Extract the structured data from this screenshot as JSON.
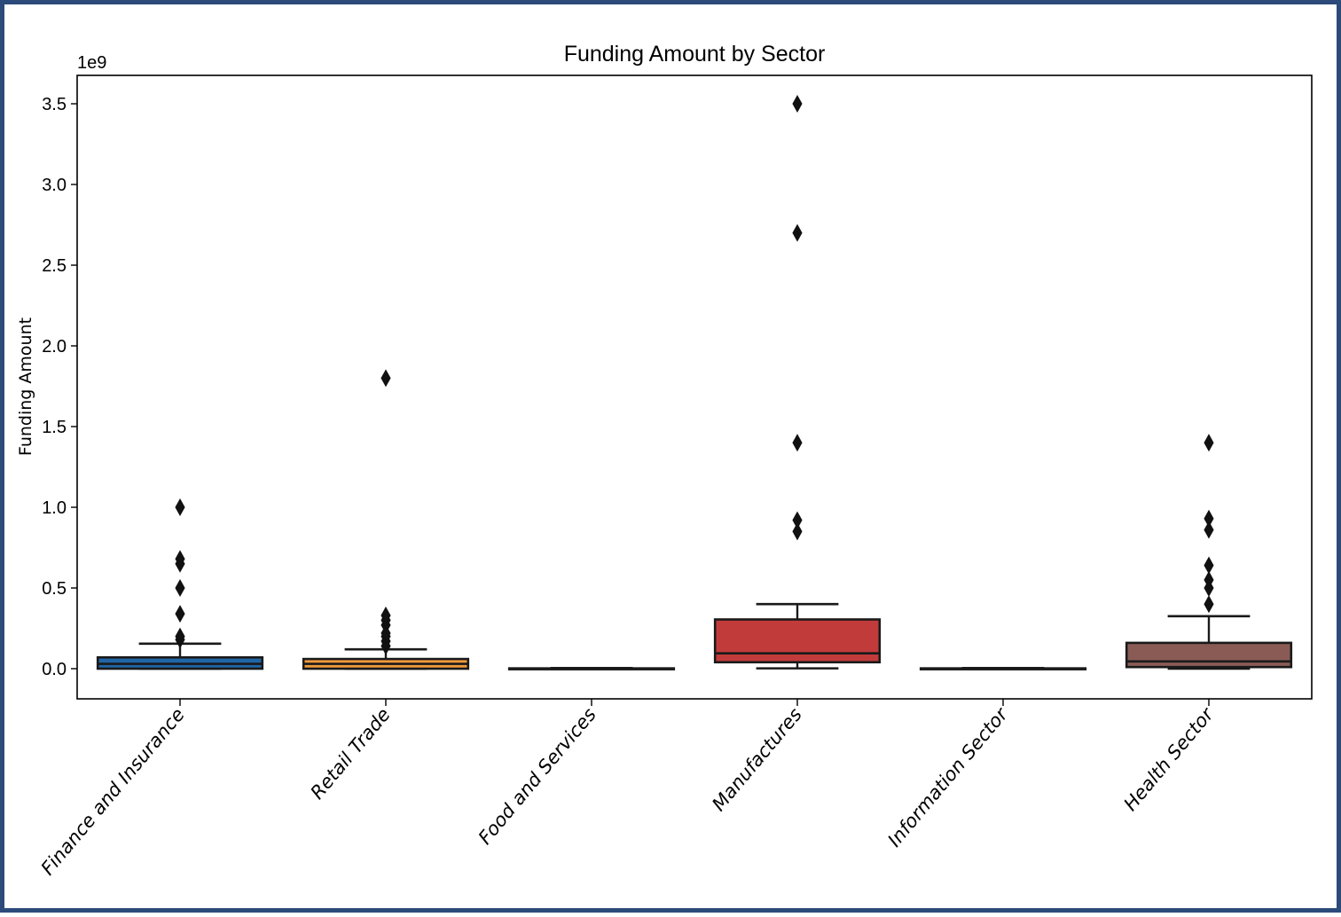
{
  "chart_data": {
    "type": "box",
    "title": "Funding Amount by Sector",
    "ylabel": "Funding Amount",
    "y_offset_label": "1e9",
    "ylim": [
      -0.19,
      3.68
    ],
    "yticks": [
      0.0,
      0.5,
      1.0,
      1.5,
      2.0,
      2.5,
      3.0,
      3.5
    ],
    "ytick_labels": [
      "0.0",
      "0.5",
      "1.0",
      "1.5",
      "2.0",
      "2.5",
      "3.0",
      "3.5"
    ],
    "units_note": "values in 1e9",
    "categories": [
      "Finance and Insurance",
      "Retail Trade",
      "Food and Services",
      "Manufactures",
      "Information Sector",
      "Health Sector"
    ],
    "boxes": [
      {
        "name": "Finance and Insurance",
        "color": "#2065a6",
        "min": 0.0,
        "q1": 0.0,
        "median": 0.03,
        "q3": 0.07,
        "max": 0.155,
        "outliers": [
          0.18,
          0.2,
          0.34,
          0.5,
          0.65,
          0.68,
          1.0
        ]
      },
      {
        "name": "Retail Trade",
        "color": "#f09a3c",
        "min": 0.0,
        "q1": 0.0,
        "median": 0.03,
        "q3": 0.06,
        "max": 0.12,
        "outliers": [
          0.14,
          0.17,
          0.2,
          0.22,
          0.27,
          0.3,
          0.33,
          1.8
        ]
      },
      {
        "name": "Food and Services",
        "color": "#3a9a3a",
        "min": 0.0,
        "q1": 0.0,
        "median": 0.0,
        "q3": 0.002,
        "max": 0.004,
        "outliers": []
      },
      {
        "name": "Manufactures",
        "color": "#c23b3b",
        "min": 0.002,
        "q1": 0.04,
        "median": 0.095,
        "q3": 0.305,
        "max": 0.4,
        "outliers": [
          0.85,
          0.92,
          1.4,
          2.7,
          3.5
        ]
      },
      {
        "name": "Information Sector",
        "color": "#8466b0",
        "min": 0.0,
        "q1": 0.0,
        "median": 0.0,
        "q3": 0.002,
        "max": 0.004,
        "outliers": []
      },
      {
        "name": "Health Sector",
        "color": "#8a5b55",
        "min": 0.0,
        "q1": 0.01,
        "median": 0.045,
        "q3": 0.16,
        "max": 0.325,
        "outliers": [
          0.4,
          0.5,
          0.55,
          0.64,
          0.86,
          0.93,
          1.4
        ]
      }
    ],
    "grid": false,
    "legend": "none"
  }
}
